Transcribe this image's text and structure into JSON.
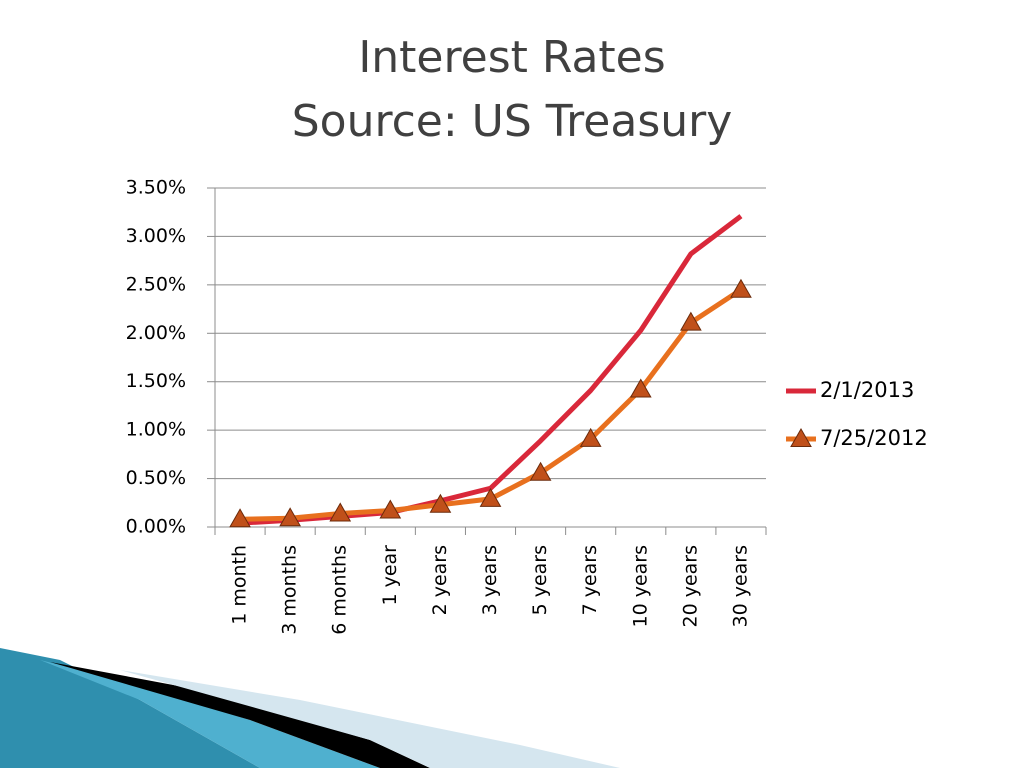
{
  "chart_data": {
    "type": "line",
    "title": "Interest Rates",
    "subtitle": "Source: US Treasury",
    "categories": [
      "1 month",
      "3 months",
      "6 months",
      "1 year",
      "2 years",
      "3 years",
      "5 years",
      "7 years",
      "10 years",
      "20 years",
      "30 years"
    ],
    "series": [
      {
        "name": "2/1/2013",
        "color": "#d9283a",
        "marker": "none",
        "values": [
          0.04,
          0.07,
          0.11,
          0.15,
          0.27,
          0.4,
          0.89,
          1.41,
          2.03,
          2.82,
          3.21
        ]
      },
      {
        "name": "7/25/2012",
        "color": "#e8701e",
        "marker": "triangle",
        "values": [
          0.08,
          0.09,
          0.14,
          0.17,
          0.23,
          0.29,
          0.56,
          0.91,
          1.42,
          2.11,
          2.45
        ]
      }
    ],
    "ylim": [
      0,
      3.5
    ],
    "yticks": [
      {
        "value": 0,
        "label": "0.00%"
      },
      {
        "value": 0.5,
        "label": "0.50%"
      },
      {
        "value": 1,
        "label": "1.00%"
      },
      {
        "value": 1.5,
        "label": "1.50%"
      },
      {
        "value": 2,
        "label": "2.00%"
      },
      {
        "value": 2.5,
        "label": "2.50%"
      },
      {
        "value": 3,
        "label": "3.00%"
      },
      {
        "value": 3.5,
        "label": "3.50%"
      }
    ],
    "grid": true,
    "legend": "right"
  }
}
